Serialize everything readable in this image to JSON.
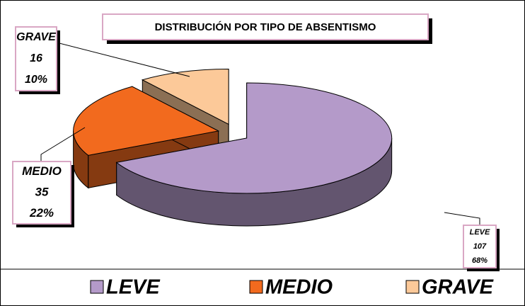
{
  "chart_data": {
    "type": "pie3d",
    "title": "DISTRIBUCIÓN POR TIPO DE ABSENTISMO",
    "categories": [
      "LEVE",
      "MEDIO",
      "GRAVE"
    ],
    "values": [
      107,
      35,
      16
    ],
    "percent_labels": [
      "68%",
      "22%",
      "10%"
    ],
    "colors": [
      "#b49ac9",
      "#f26a1e",
      "#fcc999"
    ],
    "legend": "bottom"
  }
}
